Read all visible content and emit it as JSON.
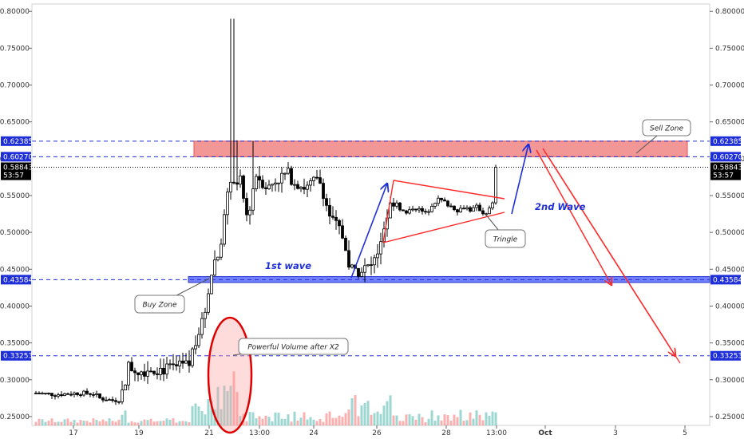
{
  "chart_data": {
    "type": "candlestick",
    "y_ticks": [
      "0.80000",
      "0.75000",
      "0.70000",
      "0.65000",
      "0.60000",
      "0.55000",
      "0.50000",
      "0.45000",
      "0.40000",
      "0.35000",
      "0.30000",
      "0.25000"
    ],
    "x_ticks": [
      "17",
      "19",
      "21",
      "13:00",
      "24",
      "26",
      "28",
      "13:00",
      "Oct",
      "3",
      "5"
    ],
    "price_labels": [
      {
        "text": "0.62385",
        "value": 0.62385,
        "style": "blue"
      },
      {
        "text": "0.60270",
        "value": 0.6027,
        "style": "blue"
      },
      {
        "text": "0.58843",
        "value": 0.58843,
        "style": "black"
      },
      {
        "text": "53:57",
        "value": 0.5775,
        "style": "black"
      },
      {
        "text": "0.43584",
        "value": 0.43584,
        "style": "blue"
      },
      {
        "text": "0.33253",
        "value": 0.33253,
        "style": "blue"
      }
    ],
    "ylim": [
      0.238,
      0.81
    ],
    "sell_zone": [
      0.6027,
      0.62385
    ],
    "buy_zone": [
      0.432,
      0.44
    ],
    "last_price": 0.58843,
    "annotations": {
      "sell_zone": "Sell Zone",
      "buy_zone": "Buy Zone",
      "triangle": "Tringle",
      "volume": "Powerful Volume after X2",
      "first_wave": "1st wave",
      "second_wave": "2nd Wave"
    },
    "colors": {
      "up": "#26a69a",
      "down": "#ef5350",
      "candle": "#000000",
      "sell_zone": "#f28b8b",
      "buy_zone": "#5b6bff",
      "blue_line": "#1f2fd8",
      "red_arrow": "#ff2a2a",
      "blue_arrow": "#1f2fd8"
    }
  }
}
